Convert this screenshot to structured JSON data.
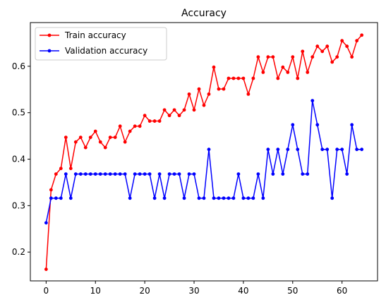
{
  "chart_data": {
    "type": "line",
    "title": "Accuracy",
    "xlabel": "",
    "ylabel": "",
    "xlim": [
      -3.2,
      67.2
    ],
    "ylim": [
      0.138,
      0.694
    ],
    "xticks": [
      0,
      10,
      20,
      30,
      40,
      50,
      60
    ],
    "yticks": [
      0.2,
      0.3,
      0.4,
      0.5,
      0.6
    ],
    "grid": false,
    "legend_position": "top-left",
    "x": [
      0,
      1,
      2,
      3,
      4,
      5,
      6,
      7,
      8,
      9,
      10,
      11,
      12,
      13,
      14,
      15,
      16,
      17,
      18,
      19,
      20,
      21,
      22,
      23,
      24,
      25,
      26,
      27,
      28,
      29,
      30,
      31,
      32,
      33,
      34,
      35,
      36,
      37,
      38,
      39,
      40,
      41,
      42,
      43,
      44,
      45,
      46,
      47,
      48,
      49,
      50,
      51,
      52,
      53,
      54,
      55,
      56,
      57,
      58,
      59,
      60,
      61,
      62,
      63,
      64
    ],
    "series": [
      {
        "name": "Train accuracy",
        "color": "#ff0000",
        "values": [
          0.163,
          0.334,
          0.368,
          0.38,
          0.447,
          0.38,
          0.437,
          0.447,
          0.425,
          0.447,
          0.46,
          0.437,
          0.425,
          0.447,
          0.447,
          0.471,
          0.437,
          0.46,
          0.471,
          0.471,
          0.494,
          0.482,
          0.482,
          0.482,
          0.506,
          0.494,
          0.506,
          0.494,
          0.506,
          0.54,
          0.506,
          0.551,
          0.516,
          0.54,
          0.598,
          0.551,
          0.551,
          0.574,
          0.574,
          0.574,
          0.574,
          0.54,
          0.574,
          0.62,
          0.587,
          0.62,
          0.62,
          0.574,
          0.598,
          0.587,
          0.62,
          0.574,
          0.632,
          0.587,
          0.62,
          0.643,
          0.632,
          0.643,
          0.609,
          0.62,
          0.655,
          0.643,
          0.62,
          0.655,
          0.667
        ]
      },
      {
        "name": "Validation accuracy",
        "color": "#0000ff",
        "values": [
          0.263,
          0.316,
          0.316,
          0.316,
          0.368,
          0.316,
          0.368,
          0.368,
          0.368,
          0.368,
          0.368,
          0.368,
          0.368,
          0.368,
          0.368,
          0.368,
          0.368,
          0.316,
          0.368,
          0.368,
          0.368,
          0.368,
          0.316,
          0.368,
          0.316,
          0.368,
          0.368,
          0.368,
          0.316,
          0.368,
          0.368,
          0.316,
          0.316,
          0.421,
          0.316,
          0.316,
          0.316,
          0.316,
          0.316,
          0.368,
          0.316,
          0.316,
          0.316,
          0.368,
          0.316,
          0.421,
          0.368,
          0.421,
          0.368,
          0.421,
          0.474,
          0.421,
          0.368,
          0.368,
          0.526,
          0.474,
          0.421,
          0.421,
          0.316,
          0.421,
          0.421,
          0.368,
          0.474,
          0.421,
          0.421
        ]
      }
    ]
  }
}
